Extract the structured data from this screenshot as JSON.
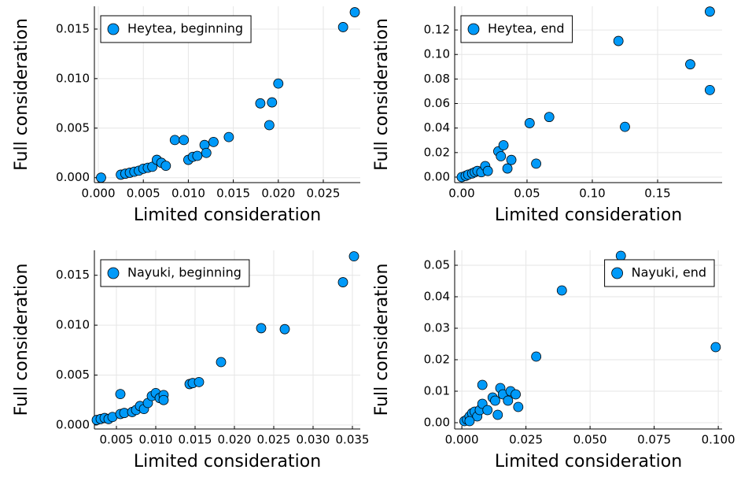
{
  "chart_data": [
    {
      "type": "scatter",
      "xlabel": "Limited consideration",
      "ylabel": "Full consideration",
      "legend": "top-left",
      "grid": true,
      "xlim": [
        -0.00044,
        0.02911
      ],
      "ylim": [
        -0.0005,
        0.0173
      ],
      "xticks": [
        {
          "value": 0,
          "label": "0.000"
        },
        {
          "value": 0.005,
          "label": "0.005"
        },
        {
          "value": 0.01,
          "label": "0.010"
        },
        {
          "value": 0.015,
          "label": "0.015"
        },
        {
          "value": 0.02,
          "label": "0.020"
        },
        {
          "value": 0.025,
          "label": "0.025"
        }
      ],
      "yticks": [
        {
          "value": 0,
          "label": "0.000"
        },
        {
          "value": 0.005,
          "label": "0.005"
        },
        {
          "value": 0.01,
          "label": "0.010"
        },
        {
          "value": 0.015,
          "label": "0.015"
        }
      ],
      "series": [
        {
          "name": "Heytea, beginning",
          "color": "#009af9",
          "x": [
            0.0003,
            0.0025,
            0.003,
            0.0035,
            0.004,
            0.0045,
            0.005,
            0.0055,
            0.006,
            0.0065,
            0.007,
            0.0075,
            0.0085,
            0.0095,
            0.01,
            0.0105,
            0.011,
            0.0118,
            0.012,
            0.0128,
            0.0145,
            0.018,
            0.019,
            0.0193,
            0.02,
            0.0272,
            0.0285
          ],
          "values": [
            0.0,
            0.0003,
            0.0004,
            0.0005,
            0.0006,
            0.0007,
            0.0009,
            0.001,
            0.0011,
            0.0018,
            0.0015,
            0.0012,
            0.0038,
            0.0038,
            0.0018,
            0.0021,
            0.0022,
            0.0033,
            0.0025,
            0.0036,
            0.0041,
            0.0075,
            0.0053,
            0.0076,
            0.0095,
            0.0152,
            0.0167
          ]
        }
      ]
    },
    {
      "type": "scatter",
      "xlabel": "Limited consideration",
      "ylabel": "Full consideration",
      "legend": "top-left",
      "grid": true,
      "xlim": [
        -0.0054,
        0.1994
      ],
      "ylim": [
        -0.0045,
        0.1393
      ],
      "xticks": [
        {
          "value": 0,
          "label": "0.00"
        },
        {
          "value": 0.05,
          "label": "0.05"
        },
        {
          "value": 0.1,
          "label": "0.10"
        },
        {
          "value": 0.15,
          "label": "0.15"
        }
      ],
      "yticks": [
        {
          "value": 0,
          "label": "0.00"
        },
        {
          "value": 0.02,
          "label": "0.02"
        },
        {
          "value": 0.04,
          "label": "0.04"
        },
        {
          "value": 0.06,
          "label": "0.06"
        },
        {
          "value": 0.08,
          "label": "0.08"
        },
        {
          "value": 0.1,
          "label": "0.10"
        },
        {
          "value": 0.12,
          "label": "0.12"
        }
      ],
      "series": [
        {
          "name": "Heytea, end",
          "color": "#009af9",
          "x": [
            0,
            0.003,
            0.005,
            0.008,
            0.01,
            0.012,
            0.015,
            0.018,
            0.02,
            0.028,
            0.03,
            0.032,
            0.035,
            0.038,
            0.052,
            0.057,
            0.067,
            0.12,
            0.125,
            0.175,
            0.19,
            0.19
          ],
          "values": [
            0,
            0.001,
            0.002,
            0.003,
            0.004,
            0.005,
            0.004,
            0.009,
            0.005,
            0.021,
            0.017,
            0.026,
            0.007,
            0.014,
            0.044,
            0.011,
            0.049,
            0.111,
            0.041,
            0.092,
            0.071,
            0.135
          ]
        }
      ]
    },
    {
      "type": "scatter",
      "xlabel": "Limited consideration",
      "ylabel": "Full consideration",
      "legend": "top-left",
      "grid": true,
      "xlim": [
        0.0022,
        0.036
      ],
      "ylim": [
        -0.0004,
        0.0175
      ],
      "xticks": [
        {
          "value": 0.005,
          "label": "0.005"
        },
        {
          "value": 0.01,
          "label": "0.010"
        },
        {
          "value": 0.015,
          "label": "0.015"
        },
        {
          "value": 0.02,
          "label": "0.020"
        },
        {
          "value": 0.025,
          "label": "0.025"
        },
        {
          "value": 0.03,
          "label": "0.030"
        },
        {
          "value": 0.035,
          "label": "0.035"
        }
      ],
      "yticks": [
        {
          "value": 0,
          "label": "0.000"
        },
        {
          "value": 0.005,
          "label": "0.005"
        },
        {
          "value": 0.01,
          "label": "0.010"
        },
        {
          "value": 0.015,
          "label": "0.015"
        }
      ],
      "series": [
        {
          "name": "Nayuki, beginning",
          "color": "#009af9",
          "x": [
            0.0025,
            0.003,
            0.0035,
            0.004,
            0.0045,
            0.0055,
            0.0055,
            0.006,
            0.007,
            0.0075,
            0.008,
            0.0085,
            0.009,
            0.0095,
            0.01,
            0.0105,
            0.011,
            0.011,
            0.0143,
            0.0147,
            0.0155,
            0.0183,
            0.0234,
            0.0264,
            0.0338,
            0.0352
          ],
          "values": [
            0.0005,
            0.0006,
            0.0007,
            0.0006,
            0.0008,
            0.0031,
            0.0011,
            0.0012,
            0.0013,
            0.0015,
            0.0019,
            0.0016,
            0.0022,
            0.0029,
            0.0032,
            0.0027,
            0.003,
            0.0025,
            0.0041,
            0.0042,
            0.0043,
            0.0063,
            0.0097,
            0.0096,
            0.0143,
            0.0169
          ]
        }
      ]
    },
    {
      "type": "scatter",
      "xlabel": "Limited consideration",
      "ylabel": "Full consideration",
      "legend": "top-right",
      "grid": true,
      "xlim": [
        -0.0028,
        0.1015
      ],
      "ylim": [
        -0.002,
        0.05475
      ],
      "xticks": [
        {
          "value": 0,
          "label": "0.000"
        },
        {
          "value": 0.025,
          "label": "0.025"
        },
        {
          "value": 0.05,
          "label": "0.050"
        },
        {
          "value": 0.075,
          "label": "0.075"
        },
        {
          "value": 0.1,
          "label": "0.100"
        }
      ],
      "yticks": [
        {
          "value": 0,
          "label": "0.00"
        },
        {
          "value": 0.01,
          "label": "0.01"
        },
        {
          "value": 0.02,
          "label": "0.02"
        },
        {
          "value": 0.03,
          "label": "0.03"
        },
        {
          "value": 0.04,
          "label": "0.04"
        },
        {
          "value": 0.05,
          "label": "0.05"
        }
      ],
      "series": [
        {
          "name": "Nayuki, end",
          "color": "#009af9",
          "x": [
            0.001,
            0.002,
            0.003,
            0.004,
            0.005,
            0.006,
            0.007,
            0.008,
            0.008,
            0.01,
            0.012,
            0.013,
            0.015,
            0.016,
            0.018,
            0.019,
            0.021,
            0.022,
            0.029,
            0.039,
            0.062,
            0.099,
            0.003,
            0.014
          ],
          "values": [
            0.0005,
            0.001,
            0.002,
            0.003,
            0.0035,
            0.002,
            0.004,
            0.012,
            0.006,
            0.004,
            0.008,
            0.007,
            0.011,
            0.009,
            0.007,
            0.01,
            0.009,
            0.005,
            0.021,
            0.042,
            0.053,
            0.024,
            0.0005,
            0.0025
          ]
        }
      ]
    }
  ]
}
